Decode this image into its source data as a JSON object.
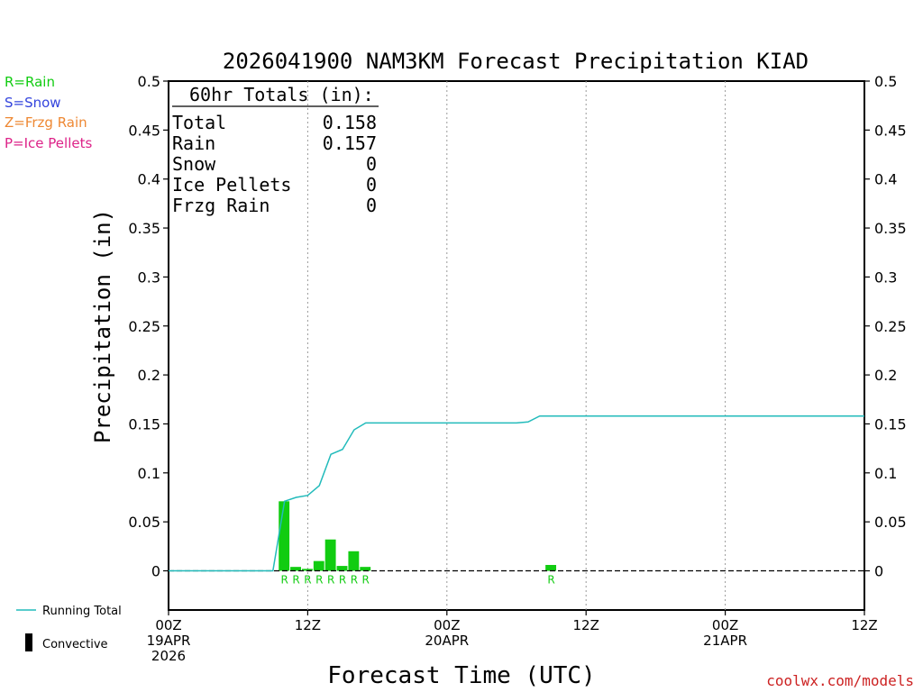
{
  "title": "2026041900 NAM3KM Forecast Precipitation KIAD",
  "ylabel": "Precipitation (in)",
  "xlabel": "Forecast Time (UTC)",
  "credit": "coolwx.com/models",
  "colors": {
    "rain": "#11cc11",
    "snow": "#3344dd",
    "frzg": "#ee8833",
    "ice": "#dd2288",
    "running_total": "#22bbbb",
    "convective": "#000000"
  },
  "precip_legend": [
    {
      "text": "R=Rain",
      "color": "#11cc11"
    },
    {
      "text": "S=Snow",
      "color": "#3344dd"
    },
    {
      "text": "Z=Frzg Rain",
      "color": "#ee8833"
    },
    {
      "text": "P=Ice Pellets",
      "color": "#dd2288"
    }
  ],
  "bottom_legend": {
    "running_total": "Running Total",
    "convective": "Convective"
  },
  "totals": {
    "header": "60hr Totals (in):",
    "rows": [
      {
        "label": "Total",
        "value": "0.158"
      },
      {
        "label": "Rain",
        "value": "0.157"
      },
      {
        "label": "Snow",
        "value": "0"
      },
      {
        "label": "Ice Pellets",
        "value": "0"
      },
      {
        "label": "Frzg Rain",
        "value": "0"
      }
    ]
  },
  "chart_data": {
    "type": "bar",
    "x_unit": "forecast hour",
    "xlim": [
      0,
      60
    ],
    "ylim": [
      -0.04,
      0.5
    ],
    "yticks": [
      "0",
      "0.05",
      "0.1",
      "0.15",
      "0.2",
      "0.25",
      "0.3",
      "0.35",
      "0.4",
      "0.45",
      "0.5"
    ],
    "ytick_values": [
      0,
      0.05,
      0.1,
      0.15,
      0.2,
      0.25,
      0.3,
      0.35,
      0.4,
      0.45,
      0.5
    ],
    "xticks": [
      {
        "hour": 0,
        "lines": [
          "00Z",
          "19APR",
          "2026"
        ]
      },
      {
        "hour": 12,
        "lines": [
          "12Z"
        ]
      },
      {
        "hour": 24,
        "lines": [
          "00Z",
          "20APR"
        ]
      },
      {
        "hour": 36,
        "lines": [
          "12Z"
        ]
      },
      {
        "hour": 48,
        "lines": [
          "00Z",
          "21APR"
        ]
      },
      {
        "hour": 60,
        "lines": [
          "12Z"
        ]
      }
    ],
    "grid_hours": [
      12,
      24,
      36,
      48
    ],
    "series": [
      {
        "name": "Rain",
        "type": "bar",
        "bars": [
          {
            "hour": 10,
            "value": 0.071,
            "label": "R"
          },
          {
            "hour": 11,
            "value": 0.004,
            "label": "R"
          },
          {
            "hour": 12,
            "value": 0.002,
            "label": "R"
          },
          {
            "hour": 13,
            "value": 0.01,
            "label": "R"
          },
          {
            "hour": 14,
            "value": 0.032,
            "label": "R"
          },
          {
            "hour": 15,
            "value": 0.005,
            "label": "R"
          },
          {
            "hour": 16,
            "value": 0.02,
            "label": "R"
          },
          {
            "hour": 17,
            "value": 0.004,
            "label": "R"
          },
          {
            "hour": 33,
            "value": 0.006,
            "label": "R"
          }
        ]
      },
      {
        "name": "Running Total",
        "type": "line",
        "x": [
          0,
          8,
          9,
          10,
          11,
          12,
          13,
          14,
          15,
          16,
          17,
          30,
          31,
          32,
          60
        ],
        "y": [
          0,
          0,
          0,
          0.071,
          0.075,
          0.077,
          0.087,
          0.119,
          0.124,
          0.144,
          0.151,
          0.151,
          0.152,
          0.158,
          0.158
        ]
      }
    ]
  }
}
